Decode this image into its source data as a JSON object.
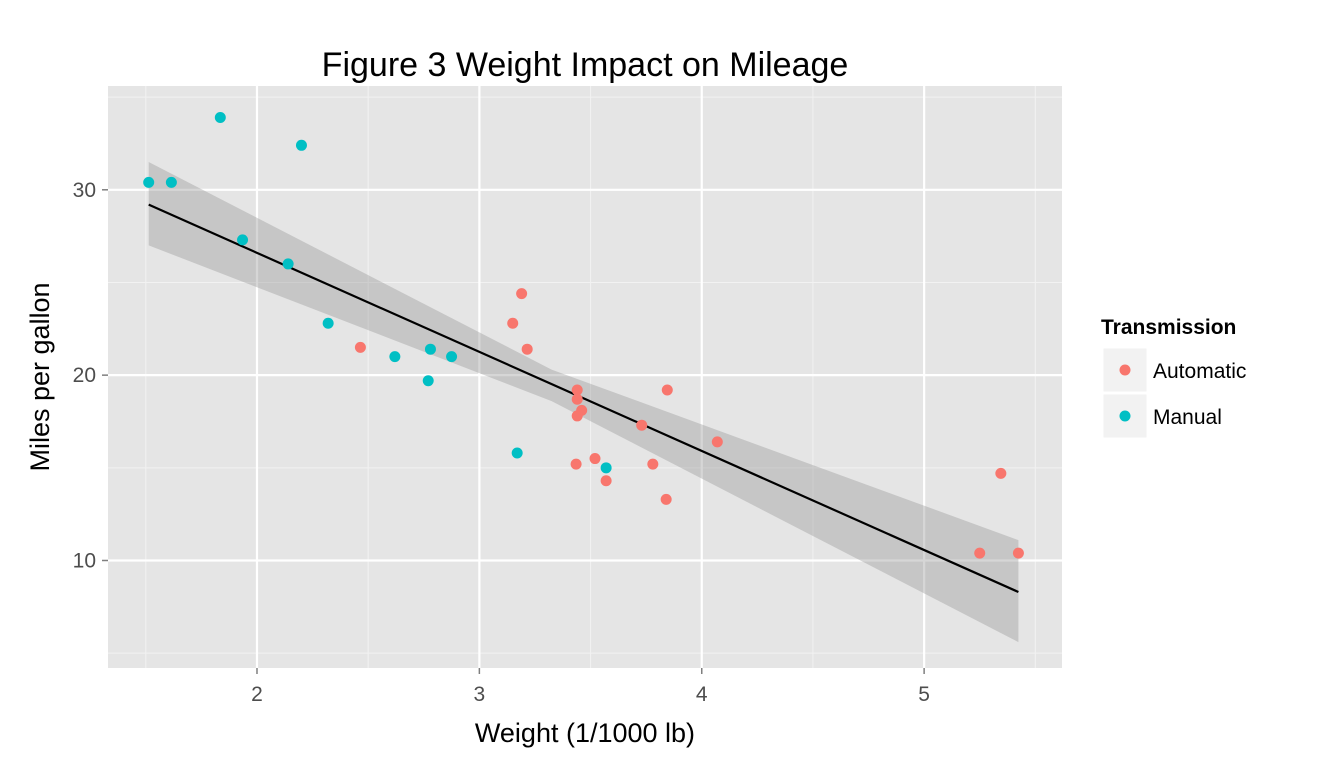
{
  "chart_data": {
    "type": "scatter",
    "title": "Figure 3 Weight Impact on Mileage",
    "xlabel": "Weight (1/1000 lb)",
    "ylabel": "Miles per gallon",
    "xlim": [
      1.33,
      5.62
    ],
    "ylim": [
      4.2,
      35.6
    ],
    "x_ticks": [
      {
        "value": 2,
        "label": "2"
      },
      {
        "value": 3,
        "label": "3"
      },
      {
        "value": 4,
        "label": "4"
      },
      {
        "value": 5,
        "label": "5"
      }
    ],
    "y_ticks": [
      {
        "value": 10,
        "label": "10"
      },
      {
        "value": 20,
        "label": "20"
      },
      {
        "value": 30,
        "label": "30"
      }
    ],
    "grid": true,
    "legend": {
      "title": "Transmission",
      "position": "right",
      "entries": [
        {
          "label": "Automatic",
          "color": "#F8766D"
        },
        {
          "label": "Manual",
          "color": "#00BFC4"
        }
      ]
    },
    "series": [
      {
        "name": "Automatic",
        "color": "#F8766D",
        "points": [
          {
            "x": 3.215,
            "y": 21.4
          },
          {
            "x": 3.44,
            "y": 18.7
          },
          {
            "x": 3.46,
            "y": 18.1
          },
          {
            "x": 3.57,
            "y": 14.3
          },
          {
            "x": 3.19,
            "y": 24.4
          },
          {
            "x": 3.15,
            "y": 22.8
          },
          {
            "x": 3.44,
            "y": 19.2
          },
          {
            "x": 3.44,
            "y": 17.8
          },
          {
            "x": 4.07,
            "y": 16.4
          },
          {
            "x": 3.73,
            "y": 17.3
          },
          {
            "x": 3.78,
            "y": 15.2
          },
          {
            "x": 5.25,
            "y": 10.4
          },
          {
            "x": 5.424,
            "y": 10.4
          },
          {
            "x": 5.345,
            "y": 14.7
          },
          {
            "x": 2.465,
            "y": 21.5
          },
          {
            "x": 3.52,
            "y": 15.5
          },
          {
            "x": 3.435,
            "y": 15.2
          },
          {
            "x": 3.84,
            "y": 13.3
          },
          {
            "x": 3.845,
            "y": 19.2
          }
        ]
      },
      {
        "name": "Manual",
        "color": "#00BFC4",
        "points": [
          {
            "x": 2.62,
            "y": 21.0
          },
          {
            "x": 2.875,
            "y": 21.0
          },
          {
            "x": 2.32,
            "y": 22.8
          },
          {
            "x": 2.2,
            "y": 32.4
          },
          {
            "x": 1.615,
            "y": 30.4
          },
          {
            "x": 1.835,
            "y": 33.9
          },
          {
            "x": 1.935,
            "y": 27.3
          },
          {
            "x": 2.14,
            "y": 26.0
          },
          {
            "x": 1.513,
            "y": 30.4
          },
          {
            "x": 3.17,
            "y": 15.8
          },
          {
            "x": 2.77,
            "y": 19.7
          },
          {
            "x": 3.57,
            "y": 15.0
          },
          {
            "x": 2.78,
            "y": 21.4
          }
        ]
      }
    ],
    "fit_line": {
      "method": "linear",
      "color": "#000000",
      "ribbon_color": "#999999",
      "points": [
        {
          "x": 1.513,
          "y": 29.2
        },
        {
          "x": 5.424,
          "y": 8.3
        }
      ],
      "ribbon": [
        {
          "x": 1.513,
          "lower": 27.0,
          "upper": 31.5
        },
        {
          "x": 3.325,
          "lower": 18.6,
          "upper": 20.3
        },
        {
          "x": 5.424,
          "lower": 5.6,
          "upper": 11.1
        }
      ]
    }
  }
}
